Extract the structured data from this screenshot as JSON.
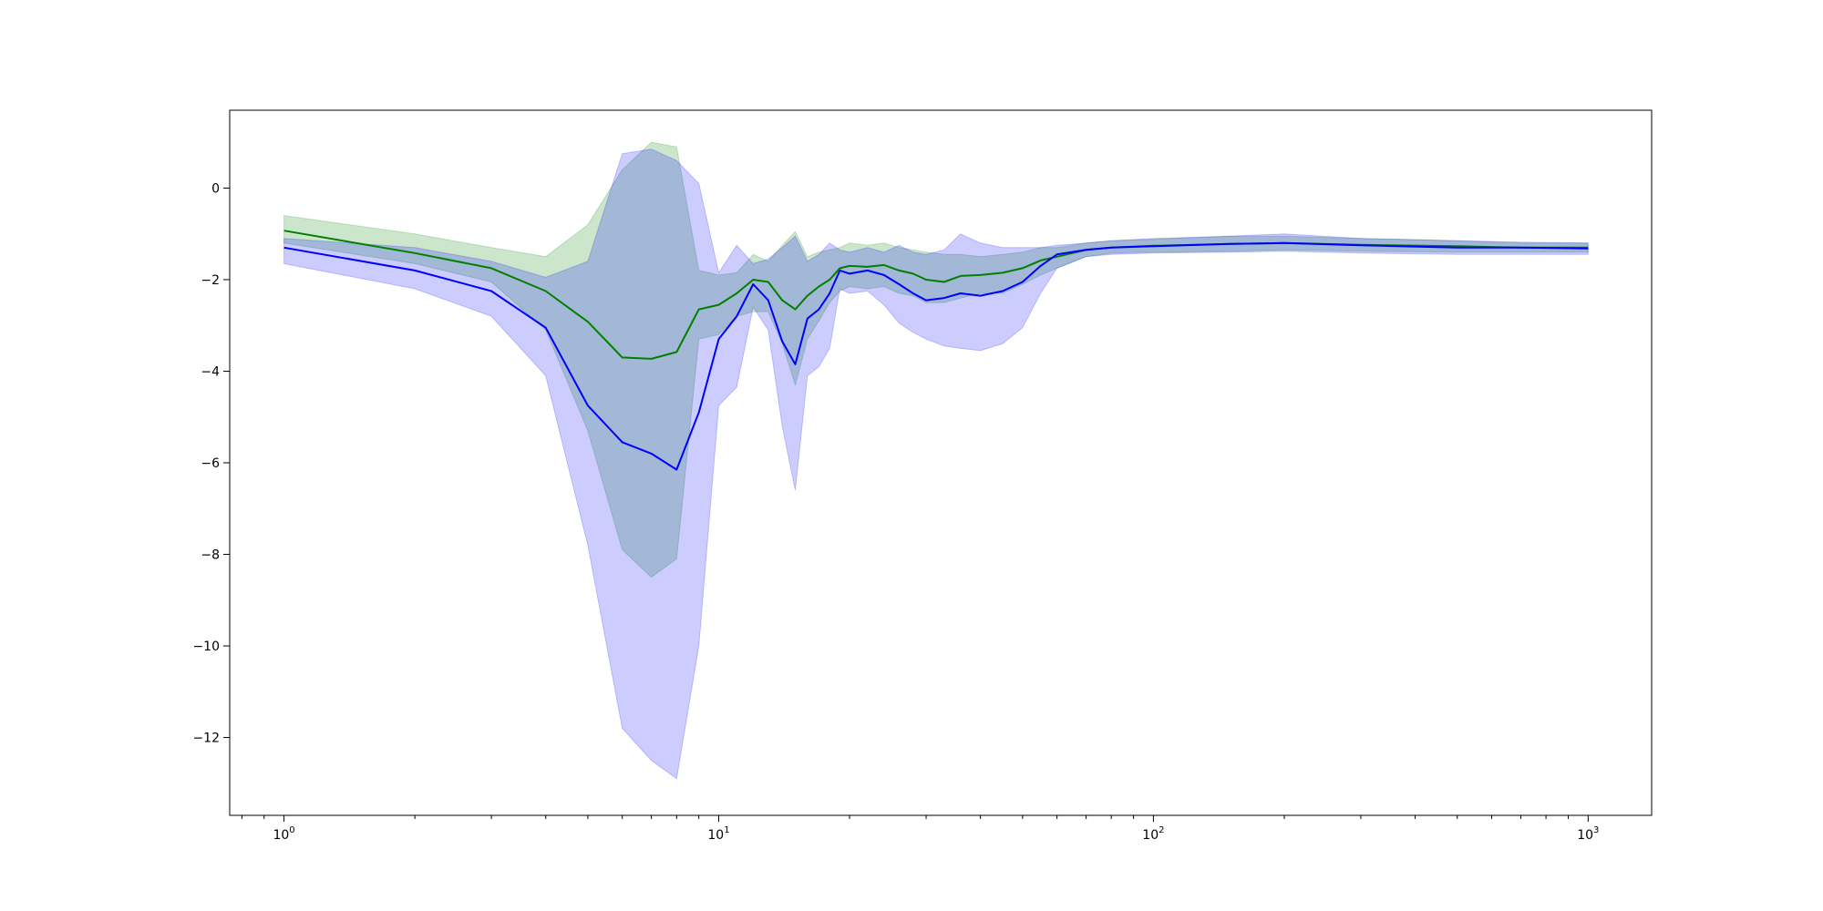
{
  "chart_data": {
    "type": "line",
    "title": "",
    "xlabel": "",
    "ylabel": "",
    "xscale": "log",
    "xlim": [
      0.75,
      1400
    ],
    "ylim": [
      -13.7,
      1.7
    ],
    "grid": false,
    "legend": "none",
    "x_ticks": [
      {
        "base": "10",
        "exp": "0",
        "value": 1
      },
      {
        "base": "10",
        "exp": "1",
        "value": 10
      },
      {
        "base": "10",
        "exp": "2",
        "value": 100
      },
      {
        "base": "10",
        "exp": "3",
        "value": 1000
      }
    ],
    "y_ticks": [
      {
        "label": "0",
        "value": 0
      },
      {
        "label": "−2",
        "value": -2
      },
      {
        "label": "−4",
        "value": -4
      },
      {
        "label": "−6",
        "value": -6
      },
      {
        "label": "−8",
        "value": -8
      },
      {
        "label": "−10",
        "value": -10
      },
      {
        "label": "−12",
        "value": -12
      }
    ],
    "series": [
      {
        "color": "#008000",
        "band_color": "#008000",
        "band_opacity": 0.2,
        "x": [
          1,
          2,
          3,
          4,
          5,
          6,
          7,
          8,
          9,
          10,
          11,
          12,
          13,
          14,
          15,
          16,
          17,
          18,
          19,
          20,
          22,
          24,
          26,
          28,
          30,
          33,
          36,
          40,
          45,
          50,
          55,
          60,
          70,
          80,
          100,
          150,
          200,
          300,
          500,
          700,
          1000
        ],
        "mean": [
          -0.93,
          -1.42,
          -1.75,
          -2.25,
          -2.92,
          -3.7,
          -3.73,
          -3.58,
          -2.65,
          -2.55,
          -2.3,
          -2.0,
          -2.05,
          -2.45,
          -2.65,
          -2.35,
          -2.15,
          -2.0,
          -1.75,
          -1.7,
          -1.72,
          -1.68,
          -1.8,
          -1.87,
          -2.0,
          -2.05,
          -1.92,
          -1.9,
          -1.85,
          -1.75,
          -1.58,
          -1.5,
          -1.35,
          -1.3,
          -1.26,
          -1.22,
          -1.2,
          -1.24,
          -1.27,
          -1.3,
          -1.3
        ],
        "upper": [
          -0.6,
          -1.0,
          -1.3,
          -1.5,
          -0.8,
          0.4,
          1.0,
          0.9,
          -1.8,
          -1.9,
          -1.85,
          -1.45,
          -1.6,
          -1.25,
          -0.95,
          -1.5,
          -1.4,
          -1.35,
          -1.3,
          -1.2,
          -1.25,
          -1.2,
          -1.3,
          -1.35,
          -1.4,
          -1.45,
          -1.45,
          -1.5,
          -1.45,
          -1.4,
          -1.3,
          -1.3,
          -1.2,
          -1.15,
          -1.12,
          -1.05,
          -1.05,
          -1.1,
          -1.15,
          -1.2,
          -1.2
        ],
        "lower": [
          -1.2,
          -1.65,
          -2.05,
          -3.1,
          -5.3,
          -7.9,
          -8.5,
          -8.1,
          -3.3,
          -3.2,
          -2.8,
          -2.7,
          -2.7,
          -3.4,
          -4.3,
          -3.3,
          -2.9,
          -2.5,
          -2.25,
          -2.15,
          -2.2,
          -2.15,
          -2.3,
          -2.35,
          -2.5,
          -2.5,
          -2.4,
          -2.3,
          -2.3,
          -2.1,
          -1.9,
          -1.75,
          -1.5,
          -1.42,
          -1.4,
          -1.38,
          -1.35,
          -1.38,
          -1.4,
          -1.4,
          -1.4
        ]
      },
      {
        "color": "#0000ff",
        "band_color": "#0000ff",
        "band_opacity": 0.2,
        "x": [
          1,
          2,
          3,
          4,
          5,
          6,
          7,
          8,
          9,
          10,
          11,
          12,
          13,
          14,
          15,
          16,
          17,
          18,
          19,
          20,
          22,
          24,
          26,
          28,
          30,
          33,
          36,
          40,
          45,
          50,
          55,
          60,
          70,
          80,
          100,
          150,
          200,
          300,
          500,
          700,
          1000
        ],
        "mean": [
          -1.3,
          -1.8,
          -2.25,
          -3.05,
          -4.75,
          -5.55,
          -5.8,
          -6.15,
          -4.9,
          -3.3,
          -2.8,
          -2.1,
          -2.45,
          -3.35,
          -3.85,
          -2.85,
          -2.65,
          -2.3,
          -1.8,
          -1.87,
          -1.8,
          -1.9,
          -2.1,
          -2.3,
          -2.45,
          -2.4,
          -2.3,
          -2.35,
          -2.25,
          -2.05,
          -1.7,
          -1.45,
          -1.35,
          -1.3,
          -1.27,
          -1.22,
          -1.2,
          -1.25,
          -1.3,
          -1.3,
          -1.32
        ],
        "upper": [
          -1.1,
          -1.3,
          -1.6,
          -1.95,
          -1.6,
          0.75,
          0.85,
          0.6,
          0.1,
          -1.85,
          -1.25,
          -1.65,
          -1.55,
          -1.3,
          -1.05,
          -1.6,
          -1.45,
          -1.2,
          -1.35,
          -1.4,
          -1.3,
          -1.4,
          -1.25,
          -1.4,
          -1.45,
          -1.35,
          -1.0,
          -1.2,
          -1.3,
          -1.3,
          -1.3,
          -1.25,
          -1.2,
          -1.15,
          -1.1,
          -1.05,
          -1.0,
          -1.1,
          -1.15,
          -1.18,
          -1.2
        ],
        "lower": [
          -1.65,
          -2.2,
          -2.8,
          -4.1,
          -7.8,
          -11.8,
          -12.5,
          -12.9,
          -10.0,
          -4.75,
          -4.35,
          -2.6,
          -3.1,
          -5.2,
          -6.6,
          -4.1,
          -3.9,
          -3.5,
          -2.2,
          -2.3,
          -2.25,
          -2.55,
          -2.95,
          -3.15,
          -3.3,
          -3.45,
          -3.5,
          -3.55,
          -3.4,
          -3.05,
          -2.3,
          -1.75,
          -1.5,
          -1.45,
          -1.42,
          -1.4,
          -1.38,
          -1.42,
          -1.45,
          -1.45,
          -1.45
        ]
      }
    ]
  }
}
